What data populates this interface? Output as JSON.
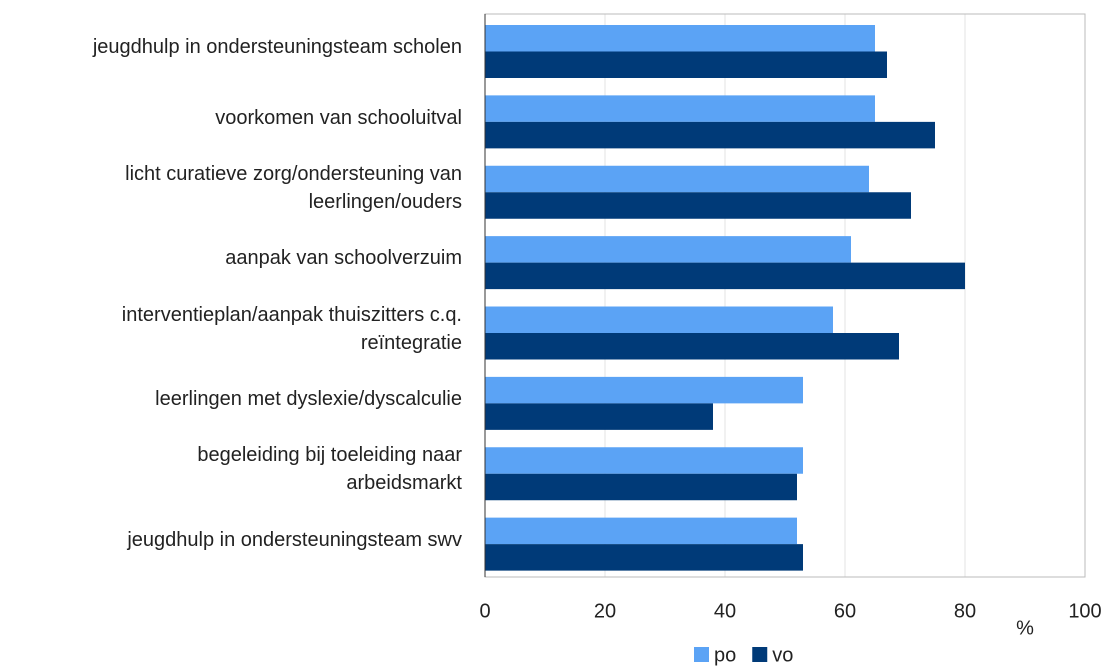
{
  "chart_data": {
    "type": "bar",
    "orientation": "horizontal",
    "categories": [
      "jeugdhulp in ondersteuningsteam scholen",
      "voorkomen van schooluitval",
      "licht curatieve zorg/ondersteuning van\nleerlingen/ouders",
      "aanpak van schoolverzuim",
      "interventieplan/aanpak thuiszitters c.q.\nreïntegratie",
      "leerlingen met dyslexie/dyscalculie",
      "begeleiding bij toeleiding naar\narbeidsmarkt",
      "jeugdhulp in ondersteuningsteam swv"
    ],
    "series": [
      {
        "name": "po",
        "color": "#5ba3f5",
        "values": [
          65,
          65,
          64,
          61,
          58,
          53,
          53,
          52
        ]
      },
      {
        "name": "vo",
        "color": "#003a78",
        "values": [
          67,
          75,
          71,
          80,
          69,
          38,
          52,
          53
        ]
      }
    ],
    "x_label": "%",
    "xlim": [
      0,
      100
    ],
    "xticks": [
      0,
      20,
      40,
      60,
      80,
      100
    ],
    "grid": true,
    "legend": "bottom"
  }
}
